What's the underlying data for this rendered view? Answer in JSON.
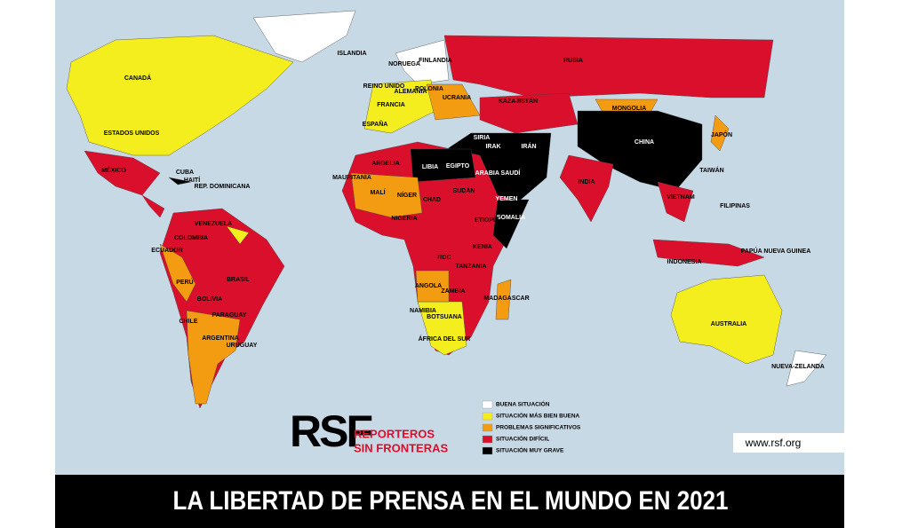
{
  "title": "LA LIBERTAD DE PRENSA EN EL MUNDO EN 2021",
  "logo": {
    "mark": "RSF",
    "name_line1": "REPORTEROS",
    "name_line2": "SIN FRONTERAS"
  },
  "website": "www.rsf.org",
  "legend": [
    {
      "label": "BUENA SITUACIÓN",
      "color": "#ffffff"
    },
    {
      "label": "SITUACIÓN MÁS BIEN BUENA",
      "color": "#f5ee1f"
    },
    {
      "label": "PROBLEMAS SIGNIFICATIVOS",
      "color": "#f39c12"
    },
    {
      "label": "SITUACIÓN DIFÍCIL",
      "color": "#d90f2c"
    },
    {
      "label": "SITUACIÓN MUY GRAVE",
      "color": "#000000"
    }
  ],
  "countries": [
    {
      "label": "CANADÁ"
    },
    {
      "label": "ESTADOS UNIDOS"
    },
    {
      "label": "MÉXICO"
    },
    {
      "label": "CUBA"
    },
    {
      "label": "HAITÍ"
    },
    {
      "label": "REP. DOMINICANA"
    },
    {
      "label": "COLOMBIA"
    },
    {
      "label": "VENEZUELA"
    },
    {
      "label": "ECUADOR"
    },
    {
      "label": "PERÚ"
    },
    {
      "label": "BRASIL"
    },
    {
      "label": "BOLIVIA"
    },
    {
      "label": "PARAGUAY"
    },
    {
      "label": "CHILE"
    },
    {
      "label": "ARGENTINA"
    },
    {
      "label": "URUGUAY"
    },
    {
      "label": "ISLANDIA"
    },
    {
      "label": "NORUEGA"
    },
    {
      "label": "FINLANDIA"
    },
    {
      "label": "RUSIA"
    },
    {
      "label": "REINO UNIDO"
    },
    {
      "label": "FRANCIA"
    },
    {
      "label": "ESPAÑA"
    },
    {
      "label": "ALEMANIA"
    },
    {
      "label": "POLONIA"
    },
    {
      "label": "UCRANIA"
    },
    {
      "label": "KAZAJISTÁN"
    },
    {
      "label": "MONGOLIA"
    },
    {
      "label": "CHINA"
    },
    {
      "label": "JAPÓN"
    },
    {
      "label": "TAIWÁN"
    },
    {
      "label": "INDIA"
    },
    {
      "label": "IRÁN"
    },
    {
      "label": "IRAK"
    },
    {
      "label": "SIRIA"
    },
    {
      "label": "ARABIA SAUDÍ"
    },
    {
      "label": "YEMEN"
    },
    {
      "label": "SOMALIA"
    },
    {
      "label": "ETIOPÍA"
    },
    {
      "label": "KENIA"
    },
    {
      "label": "SUDÁN"
    },
    {
      "label": "EGIPTO"
    },
    {
      "label": "LIBIA"
    },
    {
      "label": "ARGELIA"
    },
    {
      "label": "MALÍ"
    },
    {
      "label": "NÍGER"
    },
    {
      "label": "CHAD"
    },
    {
      "label": "NIGERIA"
    },
    {
      "label": "RDC"
    },
    {
      "label": "ANGOLA"
    },
    {
      "label": "ZAMBIA"
    },
    {
      "label": "TANZANIA"
    },
    {
      "label": "NAMIBIA"
    },
    {
      "label": "BOTSUANA"
    },
    {
      "label": "ÁFRICA DEL SUR"
    },
    {
      "label": "MADAGASCAR"
    },
    {
      "label": "MAURITANIA"
    },
    {
      "label": "INDONESIA"
    },
    {
      "label": "FILIPINAS"
    },
    {
      "label": "PAPÚA NUEVA GUINEA"
    },
    {
      "label": "AUSTRALIA"
    },
    {
      "label": "NUEVA-ZELANDA"
    },
    {
      "label": "VIETNAM"
    }
  ]
}
